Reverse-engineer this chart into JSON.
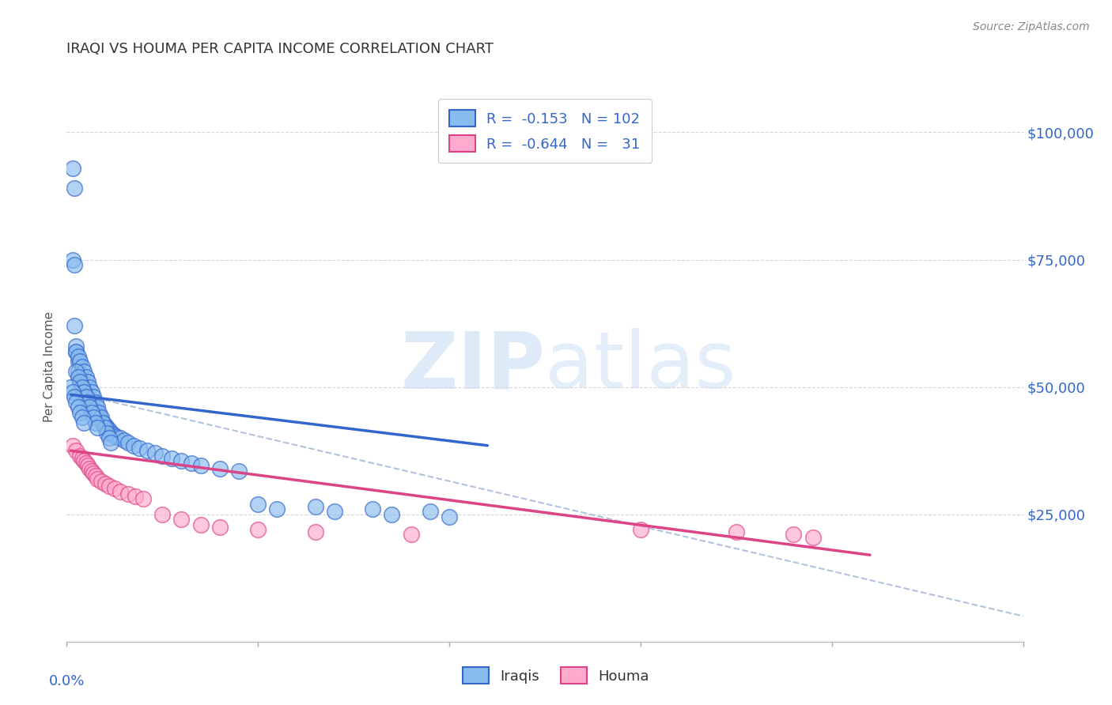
{
  "title": "IRAQI VS HOUMA PER CAPITA INCOME CORRELATION CHART",
  "source": "Source: ZipAtlas.com",
  "ylabel": "Per Capita Income",
  "xlim": [
    0.0,
    0.5
  ],
  "ylim": [
    0,
    108000
  ],
  "watermark_zip": "ZIP",
  "watermark_atlas": "atlas",
  "legend_r_blue": "-0.153",
  "legend_n_blue": "102",
  "legend_r_pink": "-0.644",
  "legend_n_pink": "31",
  "blue_color": "#88bbee",
  "pink_color": "#ffaacc",
  "line_blue": "#3366cc",
  "line_pink": "#dd4488",
  "dash_color": "#aabbdd",
  "title_color": "#333333",
  "axis_label_color": "#3366cc",
  "blue_scatter_x": [
    0.004,
    0.005,
    0.006,
    0.006,
    0.007,
    0.007,
    0.008,
    0.008,
    0.009,
    0.009,
    0.01,
    0.01,
    0.01,
    0.011,
    0.011,
    0.012,
    0.012,
    0.013,
    0.013,
    0.014,
    0.014,
    0.015,
    0.015,
    0.016,
    0.016,
    0.017,
    0.017,
    0.018,
    0.019,
    0.02,
    0.021,
    0.022,
    0.023,
    0.024,
    0.025,
    0.026,
    0.028,
    0.03,
    0.032,
    0.035,
    0.038,
    0.042,
    0.046,
    0.05,
    0.055,
    0.06,
    0.065,
    0.07,
    0.08,
    0.09,
    0.003,
    0.004,
    0.005,
    0.005,
    0.006,
    0.007,
    0.008,
    0.009,
    0.01,
    0.011,
    0.012,
    0.013,
    0.014,
    0.015,
    0.016,
    0.017,
    0.018,
    0.019,
    0.02,
    0.021,
    0.022,
    0.023,
    0.003,
    0.004,
    0.005,
    0.006,
    0.007,
    0.008,
    0.009,
    0.01,
    0.011,
    0.012,
    0.013,
    0.014,
    0.015,
    0.016,
    0.002,
    0.003,
    0.004,
    0.005,
    0.006,
    0.007,
    0.008,
    0.009,
    0.1,
    0.13,
    0.16,
    0.19,
    0.11,
    0.14,
    0.17,
    0.2
  ],
  "blue_scatter_y": [
    62000,
    57000,
    55000,
    53000,
    52000,
    51000,
    50500,
    50000,
    49500,
    49000,
    48500,
    48200,
    48000,
    47500,
    47000,
    46800,
    46500,
    46200,
    46000,
    45800,
    45500,
    45200,
    45000,
    44800,
    44500,
    44200,
    44000,
    43500,
    43000,
    42500,
    42000,
    41500,
    41000,
    40800,
    40500,
    40200,
    40000,
    39500,
    39000,
    38500,
    38000,
    37500,
    37000,
    36500,
    36000,
    35500,
    35000,
    34500,
    34000,
    33500,
    93000,
    89000,
    58000,
    57000,
    56000,
    55000,
    54000,
    53000,
    52000,
    51000,
    50000,
    49000,
    48000,
    47000,
    46000,
    45000,
    44000,
    43000,
    42000,
    41000,
    40000,
    39000,
    75000,
    74000,
    53000,
    52000,
    51000,
    50000,
    49000,
    48000,
    47000,
    46000,
    45000,
    44000,
    43000,
    42000,
    50000,
    49000,
    48000,
    47000,
    46000,
    45000,
    44000,
    43000,
    27000,
    26500,
    26000,
    25500,
    26000,
    25500,
    25000,
    24500
  ],
  "pink_scatter_x": [
    0.003,
    0.005,
    0.007,
    0.008,
    0.009,
    0.01,
    0.011,
    0.012,
    0.013,
    0.014,
    0.015,
    0.016,
    0.018,
    0.02,
    0.022,
    0.025,
    0.028,
    0.032,
    0.036,
    0.04,
    0.05,
    0.06,
    0.07,
    0.08,
    0.1,
    0.13,
    0.18,
    0.3,
    0.35,
    0.38,
    0.39
  ],
  "pink_scatter_y": [
    38500,
    37500,
    36500,
    36000,
    35500,
    35000,
    34500,
    34000,
    33500,
    33000,
    32500,
    32000,
    31500,
    31000,
    30500,
    30000,
    29500,
    29000,
    28500,
    28000,
    25000,
    24000,
    23000,
    22500,
    22000,
    21500,
    21000,
    22000,
    21500,
    21000,
    20500
  ],
  "blue_line_x": [
    0.002,
    0.22
  ],
  "blue_line_y": [
    48500,
    38500
  ],
  "pink_line_x": [
    0.002,
    0.42
  ],
  "pink_line_y": [
    37500,
    17000
  ],
  "dash_line_x": [
    0.002,
    0.5
  ],
  "dash_line_y": [
    49000,
    5000
  ],
  "background_color": "#ffffff",
  "grid_color": "#cccccc"
}
